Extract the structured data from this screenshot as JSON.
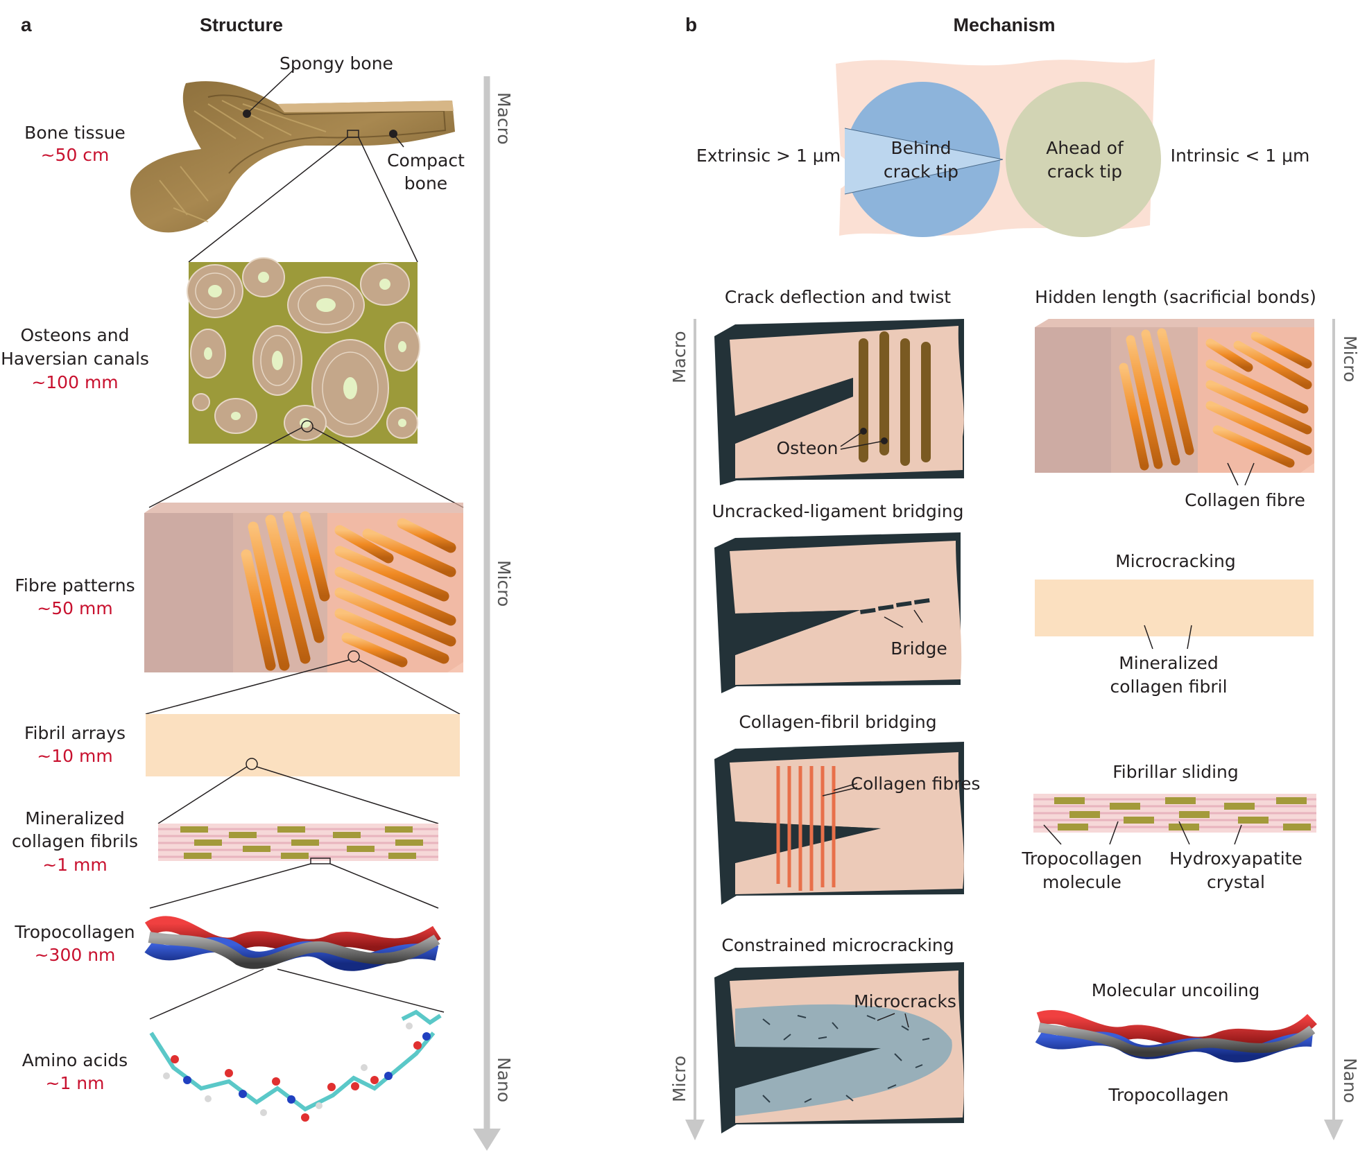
{
  "panel_a": {
    "letter": "a",
    "title": "Structure",
    "levels": [
      {
        "name": "Bone tissue",
        "scale": "~50 cm"
      },
      {
        "name1": "Osteons and",
        "name2": "Haversian canals",
        "scale": "~100 mm"
      },
      {
        "name": "Fibre patterns",
        "scale": "~50 mm"
      },
      {
        "name": "Fibril arrays",
        "scale": "~10 mm"
      },
      {
        "name1": "Mineralized",
        "name2": "collagen fibrils",
        "scale": "~1 mm"
      },
      {
        "name": "Tropocollagen",
        "scale": "~300 nm"
      },
      {
        "name": "Amino acids",
        "scale": "~1 nm"
      }
    ],
    "callouts": {
      "spongy": "Spongy bone",
      "compact1": "Compact",
      "compact2": "bone"
    },
    "axis": {
      "top": "Macro",
      "mid": "Micro",
      "bottom": "Nano"
    }
  },
  "panel_b": {
    "letter": "b",
    "title": "Mechanism",
    "extrinsic": "Extrinsic > 1 μm",
    "intrinsic": "Intrinsic < 1 μm",
    "behind1": "Behind",
    "behind2": "crack tip",
    "ahead1": "Ahead of",
    "ahead2": "crack tip",
    "left_mechanisms": [
      {
        "title": "Crack deflection and twist",
        "label": "Osteon"
      },
      {
        "title": "Uncracked-ligament bridging",
        "label": "Bridge"
      },
      {
        "title": "Collagen-fibril bridging",
        "label": "Collagen fibres"
      },
      {
        "title": "Constrained microcracking",
        "label": "Microcracks"
      }
    ],
    "right_mechanisms": [
      {
        "title": "Hidden length (sacrificial bonds)",
        "label": "Collagen fibre"
      },
      {
        "title": "Microcracking",
        "label1": "Mineralized",
        "label2": "collagen fibril"
      },
      {
        "title": "Fibrillar sliding",
        "label1a": "Tropocollagen",
        "label1b": "molecule",
        "label2a": "Hydroxyapatite",
        "label2b": "crystal"
      },
      {
        "title": "Molecular uncoiling",
        "label": "Tropocollagen"
      }
    ],
    "left_axis": {
      "top": "Macro",
      "bottom": "Micro"
    },
    "right_axis": {
      "top": "Micro",
      "bottom": "Nano"
    }
  },
  "colors": {
    "scale_red": "#c8102e",
    "behind_blue": "#8db4db",
    "ahead_green": "#d2d4b4",
    "specimen": "#f2d5c4",
    "fibre_orange": "#f08a24",
    "fibril_red": "#e0604a",
    "olive": "#a39a3a",
    "axis_grey": "#c8c8c8"
  }
}
